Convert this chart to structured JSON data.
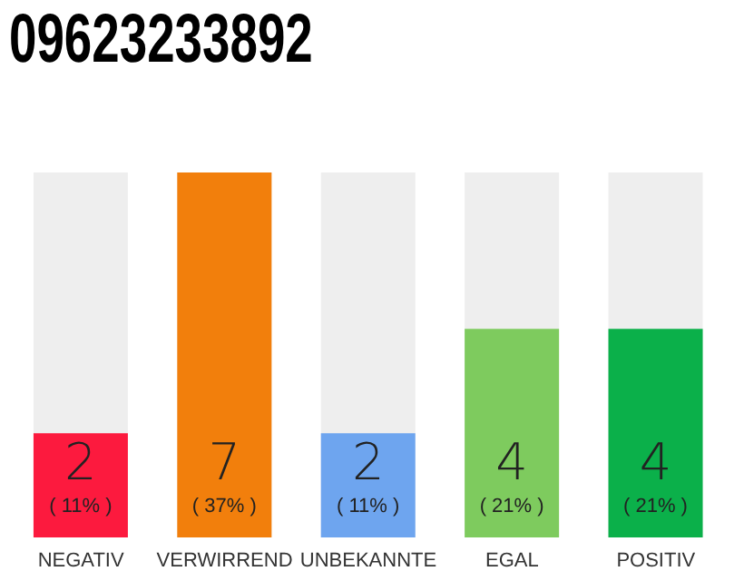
{
  "chart_data": {
    "type": "bar",
    "title": "09623233892",
    "categories": [
      "NEGATIV",
      "VERWIRREND",
      "UNBEKANNTE",
      "EGAL",
      "POSITIV"
    ],
    "values": [
      2,
      7,
      2,
      4,
      4
    ],
    "colors": [
      "#fc1a3e",
      "#f27f0c",
      "#6ea5ef",
      "#7ecb5e",
      "#0bb04a"
    ],
    "ylim": [
      0,
      7
    ],
    "tick_labels": "x",
    "data_labels": true,
    "annotations": [
      "( 11% )",
      "( 37% )",
      "( 11% )",
      "( 21% )",
      "( 21% )"
    ],
    "grid": false,
    "legend": false
  }
}
